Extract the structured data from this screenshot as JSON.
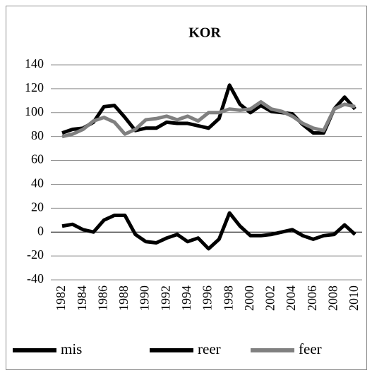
{
  "chart_data": {
    "type": "line",
    "title": "KOR",
    "x": [
      1982,
      1983,
      1984,
      1985,
      1986,
      1987,
      1988,
      1989,
      1990,
      1991,
      1992,
      1993,
      1994,
      1995,
      1996,
      1997,
      1998,
      1999,
      2000,
      2001,
      2002,
      2003,
      2004,
      2005,
      2006,
      2007,
      2008,
      2009,
      2010
    ],
    "series": [
      {
        "name": "mis",
        "color": "#000000",
        "values": [
          5,
          6.5,
          2,
          0,
          10,
          14,
          14,
          -2,
          -8,
          -9,
          -5,
          -2,
          -8,
          -5,
          -14,
          -6,
          16,
          5,
          -3,
          -3,
          -2,
          0,
          2,
          -3,
          -6,
          -3,
          -2,
          6,
          -2
        ]
      },
      {
        "name": "reer",
        "color": "#000000",
        "values": [
          83,
          86,
          87,
          92,
          105,
          106,
          96,
          85,
          87,
          87,
          92,
          91,
          91,
          89,
          87,
          95,
          123,
          107,
          100,
          106,
          101,
          100,
          99,
          90,
          83,
          83,
          103,
          113,
          103
        ]
      },
      {
        "name": "feer",
        "color": "#808080",
        "values": [
          80,
          82,
          86,
          93,
          96,
          92,
          82,
          86,
          94,
          95,
          97,
          94,
          97,
          93,
          100,
          100,
          103,
          102,
          103,
          109,
          103,
          101,
          97,
          91,
          87,
          85,
          103,
          107,
          105
        ]
      }
    ],
    "xlim": [
      1982,
      2010
    ],
    "xticks": [
      1982,
      1984,
      1986,
      1988,
      1990,
      1992,
      1994,
      1996,
      1998,
      2000,
      2002,
      2004,
      2006,
      2008,
      2010
    ],
    "ylim": [
      -40,
      140
    ],
    "yticks": [
      -40,
      -20,
      0,
      20,
      40,
      60,
      80,
      100,
      120,
      140
    ],
    "grid": true,
    "legend": "bottom"
  }
}
